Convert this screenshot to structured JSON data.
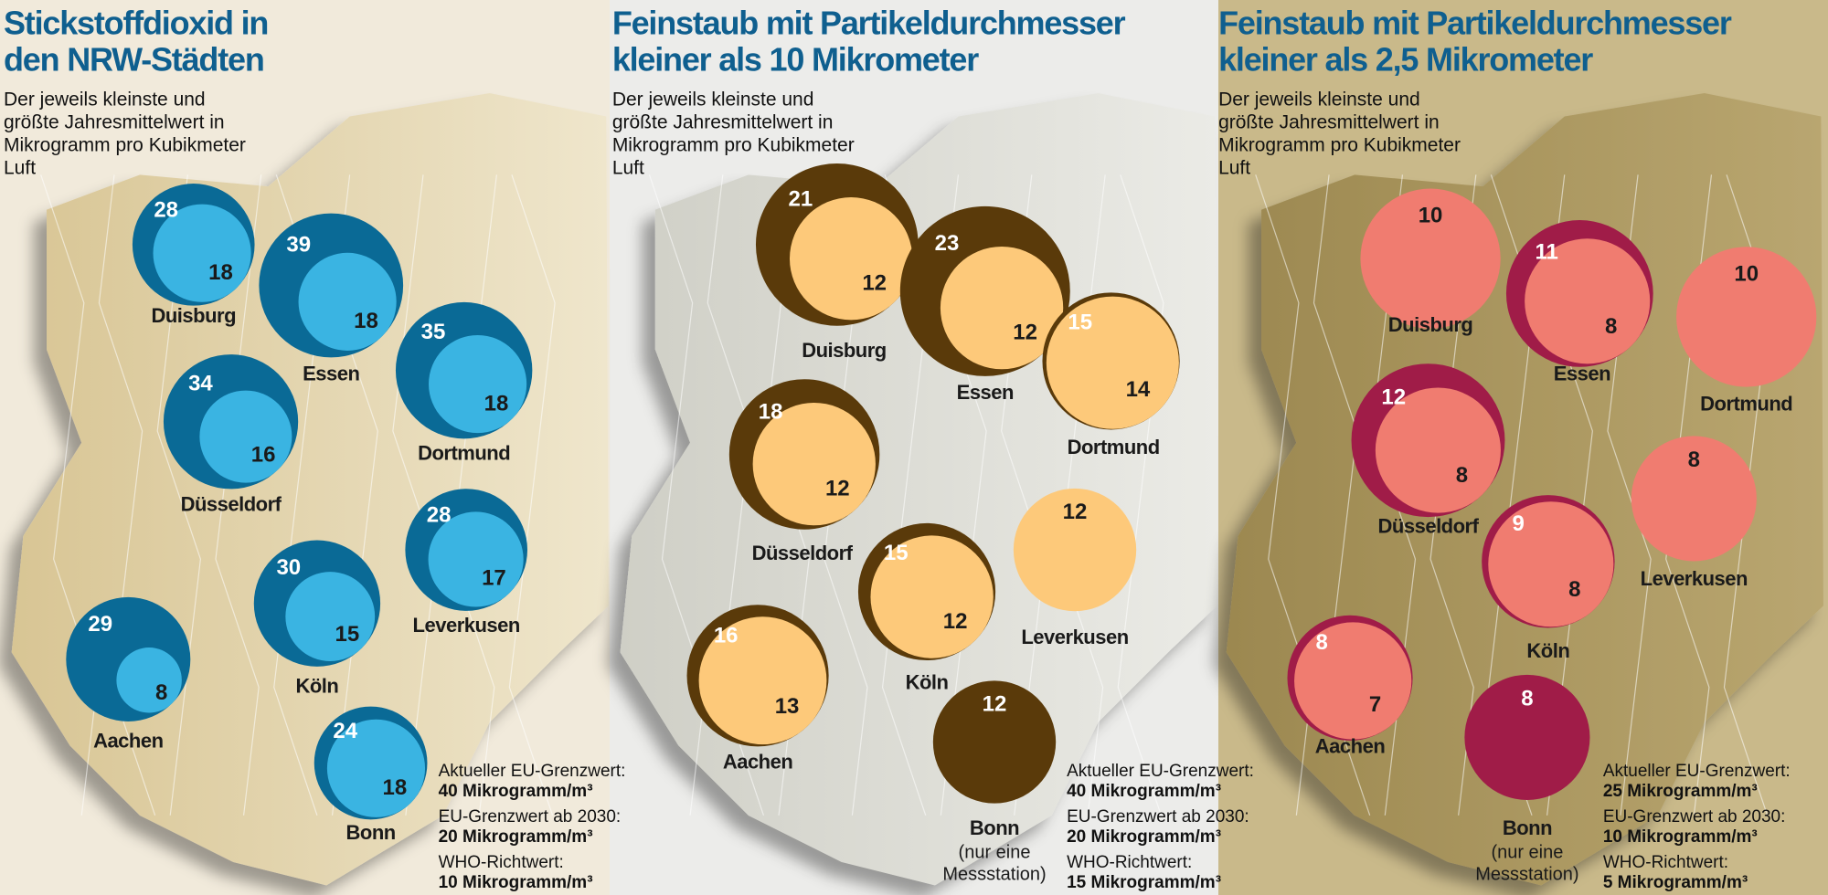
{
  "panels": [
    {
      "title": [
        "Stickstoffdioxid in",
        "den NRW-Städten"
      ],
      "subtitle": [
        "Der jeweils kleinste und",
        "größte Jahresmittelwert in",
        "Mikrogramm pro Kubikmeter",
        "Luft"
      ],
      "cities": [
        {
          "name": "Duisburg",
          "max": 28,
          "min": 18
        },
        {
          "name": "Essen",
          "max": 39,
          "min": 18
        },
        {
          "name": "Dortmund",
          "max": 35,
          "min": 18
        },
        {
          "name": "Düsseldorf",
          "max": 34,
          "min": 16
        },
        {
          "name": "Leverkusen",
          "max": 28,
          "min": 17
        },
        {
          "name": "Köln",
          "max": 30,
          "min": 15
        },
        {
          "name": "Aachen",
          "max": 29,
          "min": 8
        },
        {
          "name": "Bonn",
          "max": 24,
          "min": 18
        }
      ],
      "notes": [
        {
          "label": "Aktueller EU-Grenzwert:",
          "value": "40 Mikrogramm/m³"
        },
        {
          "label": "EU-Grenzwert ab 2030:",
          "value": "20 Mikrogramm/m³"
        },
        {
          "label": "WHO-Richtwert:",
          "value": "10 Mikrogramm/m³"
        }
      ]
    },
    {
      "title": [
        "Feinstaub mit Partikeldurchmesser",
        "kleiner als 10 Mikrometer"
      ],
      "subtitle": [
        "Der jeweils kleinste und",
        "größte Jahresmittelwert in",
        "Mikrogramm pro Kubikmeter",
        "Luft"
      ],
      "cities": [
        {
          "name": "Duisburg",
          "max": 21,
          "min": 12
        },
        {
          "name": "Essen",
          "max": 23,
          "min": 12
        },
        {
          "name": "Dortmund",
          "max": 15,
          "min": 14
        },
        {
          "name": "Düsseldorf",
          "max": 18,
          "min": 12
        },
        {
          "name": "Leverkusen",
          "min": 12
        },
        {
          "name": "Köln",
          "max": 15,
          "min": 12
        },
        {
          "name": "Aachen",
          "max": 16,
          "min": 13
        },
        {
          "name": "Bonn",
          "note": [
            "(nur eine",
            "Messstation)"
          ],
          "max": 12
        }
      ],
      "notes": [
        {
          "label": "Aktueller EU-Grenzwert:",
          "value": "40 Mikrogramm/m³"
        },
        {
          "label": "EU-Grenzwert ab 2030:",
          "value": "20 Mikrogramm/m³"
        },
        {
          "label": "WHO-Richtwert:",
          "value": "15 Mikrogramm/m³"
        }
      ]
    },
    {
      "title": [
        "Feinstaub mit Partikeldurchmesser",
        "kleiner als 2,5 Mikrometer"
      ],
      "subtitle": [
        "Der jeweils kleinste und",
        "größte Jahresmittelwert in",
        "Mikrogramm pro Kubikmeter",
        "Luft"
      ],
      "cities": [
        {
          "name": "Duisburg",
          "min": 10
        },
        {
          "name": "Essen",
          "max": 11,
          "min": 8
        },
        {
          "name": "Dortmund",
          "min": 10
        },
        {
          "name": "Düsseldorf",
          "max": 12,
          "min": 8
        },
        {
          "name": "Leverkusen",
          "min": 8
        },
        {
          "name": "Köln",
          "max": 9,
          "min": 8
        },
        {
          "name": "Aachen",
          "max": 8,
          "min": 7
        },
        {
          "name": "Bonn",
          "note": [
            "(nur eine",
            "Messstation)"
          ],
          "max": 8
        }
      ],
      "notes": [
        {
          "label": "Aktueller EU-Grenzwert:",
          "value": "25 Mikrogramm/m³"
        },
        {
          "label": "EU-Grenzwert ab 2030:",
          "value": "10 Mikrogramm/m³"
        },
        {
          "label": "WHO-Richtwert:",
          "value": "5 Mikrogramm/m³"
        }
      ]
    }
  ]
}
